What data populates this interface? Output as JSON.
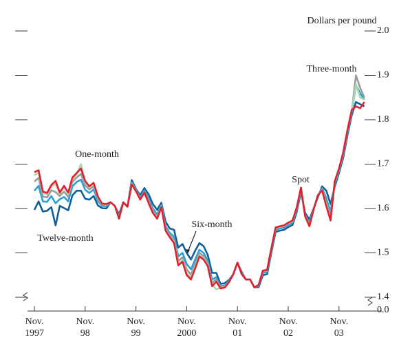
{
  "chart_data": {
    "type": "line",
    "y_label": "Dollars per pound",
    "categories": [
      "Nov.\n1997",
      null,
      null,
      null,
      null,
      null,
      null,
      null,
      null,
      null,
      null,
      null,
      "Nov.\n98",
      null,
      null,
      null,
      null,
      null,
      null,
      null,
      null,
      null,
      null,
      null,
      "Nov.\n99",
      null,
      null,
      null,
      null,
      null,
      null,
      null,
      null,
      null,
      null,
      null,
      "Nov.\n2000",
      null,
      null,
      null,
      null,
      null,
      null,
      null,
      null,
      null,
      null,
      null,
      "Nov.\n01",
      null,
      null,
      null,
      null,
      null,
      null,
      null,
      null,
      null,
      null,
      null,
      "Nov.\n02",
      null,
      null,
      null,
      null,
      null,
      null,
      null,
      null,
      null,
      null,
      null,
      "Nov.\n03",
      null,
      null,
      null,
      null,
      null,
      null
    ],
    "series": [
      {
        "name": "Twelve-month",
        "color": "#135e96",
        "values": [
          1.597,
          1.616,
          1.593,
          1.595,
          1.603,
          1.562,
          1.606,
          1.601,
          1.596,
          1.63,
          1.64,
          1.64,
          1.622,
          1.62,
          1.628,
          1.607,
          1.601,
          1.6,
          1.614,
          1.606,
          1.587,
          1.614,
          1.604,
          1.664,
          1.644,
          1.63,
          1.646,
          1.632,
          1.61,
          1.597,
          1.613,
          1.57,
          1.555,
          1.552,
          1.512,
          1.52,
          1.5,
          1.485,
          1.505,
          1.522,
          1.515,
          1.495,
          1.455,
          1.455,
          1.43,
          1.432,
          1.439,
          1.452,
          1.478,
          1.457,
          1.44,
          1.44,
          1.422,
          1.423,
          1.45,
          1.452,
          1.5,
          1.547,
          1.55,
          1.552,
          1.558,
          1.563,
          1.592,
          1.637,
          1.59,
          1.575,
          1.6,
          1.625,
          1.65,
          1.64,
          1.61,
          1.65,
          1.68,
          1.715,
          1.765,
          1.81,
          1.84,
          1.835,
          1.83
        ]
      },
      {
        "name": "Six-month",
        "color": "#2aa0d8",
        "values": [
          1.64,
          1.651,
          1.616,
          1.615,
          1.628,
          1.612,
          1.621,
          1.626,
          1.616,
          1.65,
          1.66,
          1.665,
          1.642,
          1.635,
          1.643,
          1.617,
          1.606,
          1.605,
          1.614,
          1.606,
          1.582,
          1.614,
          1.604,
          1.659,
          1.642,
          1.625,
          1.641,
          1.622,
          1.6,
          1.587,
          1.608,
          1.56,
          1.545,
          1.537,
          1.492,
          1.5,
          1.475,
          1.463,
          1.485,
          1.507,
          1.5,
          1.483,
          1.44,
          1.445,
          1.425,
          1.427,
          1.437,
          1.452,
          1.478,
          1.455,
          1.44,
          1.44,
          1.422,
          1.426,
          1.455,
          1.457,
          1.505,
          1.552,
          1.555,
          1.557,
          1.563,
          1.568,
          1.597,
          1.642,
          1.586,
          1.568,
          1.599,
          1.628,
          1.646,
          1.623,
          1.592,
          1.656,
          1.685,
          1.721,
          1.771,
          1.816,
          1.878,
          1.86,
          1.845
        ]
      },
      {
        "name": "Three-month",
        "color": "#9a9a9a",
        "values": [
          1.661,
          1.669,
          1.627,
          1.625,
          1.641,
          1.637,
          1.628,
          1.638,
          1.626,
          1.66,
          1.67,
          1.678,
          1.652,
          1.643,
          1.65,
          1.622,
          1.608,
          1.608,
          1.614,
          1.606,
          1.58,
          1.614,
          1.604,
          1.657,
          1.64,
          1.622,
          1.638,
          1.617,
          1.595,
          1.582,
          1.605,
          1.555,
          1.54,
          1.53,
          1.482,
          1.49,
          1.463,
          1.451,
          1.475,
          1.5,
          1.493,
          1.476,
          1.433,
          1.44,
          1.423,
          1.425,
          1.435,
          1.452,
          1.478,
          1.453,
          1.44,
          1.44,
          1.422,
          1.427,
          1.458,
          1.46,
          1.508,
          1.555,
          1.558,
          1.56,
          1.566,
          1.571,
          1.6,
          1.645,
          1.584,
          1.564,
          1.599,
          1.629,
          1.643,
          1.614,
          1.582,
          1.659,
          1.688,
          1.724,
          1.774,
          1.819,
          1.9,
          1.872,
          1.85
        ]
      },
      {
        "name": "One-month",
        "color": "#a8d8b0",
        "values": [
          1.675,
          1.681,
          1.635,
          1.632,
          1.65,
          1.655,
          1.634,
          1.648,
          1.633,
          1.667,
          1.677,
          1.7,
          1.659,
          1.648,
          1.656,
          1.625,
          1.61,
          1.609,
          1.614,
          1.606,
          1.578,
          1.614,
          1.604,
          1.655,
          1.639,
          1.621,
          1.636,
          1.613,
          1.591,
          1.578,
          1.604,
          1.551,
          1.536,
          1.525,
          1.475,
          1.484,
          1.455,
          1.444,
          1.469,
          1.495,
          1.488,
          1.472,
          1.428,
          1.418,
          1.421,
          1.423,
          1.434,
          1.452,
          1.478,
          1.452,
          1.44,
          1.44,
          1.422,
          1.428,
          1.46,
          1.462,
          1.51,
          1.556,
          1.559,
          1.561,
          1.567,
          1.572,
          1.601,
          1.646,
          1.582,
          1.561,
          1.598,
          1.63,
          1.642,
          1.608,
          1.576,
          1.661,
          1.689,
          1.726,
          1.776,
          1.821,
          1.88,
          1.85,
          1.845
        ]
      },
      {
        "name": "Spot",
        "color": "#e0202e",
        "values": [
          1.682,
          1.686,
          1.638,
          1.635,
          1.653,
          1.662,
          1.636,
          1.651,
          1.636,
          1.67,
          1.68,
          1.69,
          1.662,
          1.65,
          1.658,
          1.627,
          1.611,
          1.61,
          1.614,
          1.606,
          1.577,
          1.614,
          1.604,
          1.654,
          1.639,
          1.62,
          1.636,
          1.612,
          1.59,
          1.577,
          1.603,
          1.55,
          1.535,
          1.522,
          1.472,
          1.48,
          1.45,
          1.44,
          1.465,
          1.492,
          1.485,
          1.47,
          1.425,
          1.435,
          1.42,
          1.422,
          1.434,
          1.452,
          1.478,
          1.452,
          1.44,
          1.44,
          1.422,
          1.428,
          1.46,
          1.462,
          1.51,
          1.557,
          1.56,
          1.562,
          1.568,
          1.573,
          1.602,
          1.647,
          1.582,
          1.56,
          1.598,
          1.63,
          1.641,
          1.605,
          1.573,
          1.662,
          1.69,
          1.727,
          1.777,
          1.822,
          1.83,
          1.826,
          1.84
        ]
      }
    ],
    "ylim": [
      1.4,
      2.0
    ],
    "yticks": [
      1.4,
      1.5,
      1.6,
      1.7,
      1.8,
      1.9,
      {
        "value": 2,
        "label": "2.0"
      }
    ],
    "y_break_tick": {
      "value": 0,
      "label": "0.0"
    }
  }
}
